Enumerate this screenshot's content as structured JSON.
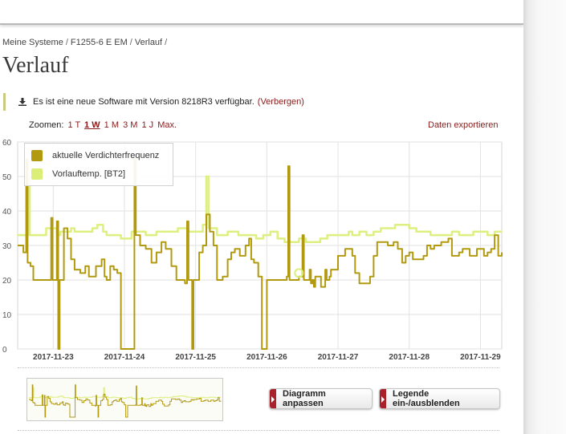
{
  "breadcrumb": {
    "items": [
      "Meine Systeme",
      "F1255-6 E EM",
      "Verlauf"
    ]
  },
  "page": {
    "title": "Verlauf"
  },
  "notice": {
    "text": "Es ist eine neue Software mit Version 8218R3 verfügbar.",
    "hide_link": "(Verbergen)"
  },
  "toolbar": {
    "zoom_label": "Zoomen:",
    "zoom_options": [
      "1 T",
      "1 W",
      "1 M",
      "3 M",
      "1 J",
      "Max."
    ],
    "zoom_active": "1 W",
    "export_label": "Daten exportieren"
  },
  "buttons": {
    "adjust": "Diagramm anpassen",
    "legend_toggle": "Legende ein-/ausblenden"
  },
  "icons": {
    "notice": "download-icon",
    "button_marker": "arrow-right-icon"
  },
  "colors": {
    "compressor": "#b29a10",
    "flow": "#dbee78",
    "link": "#8a1a1a",
    "button_tab": "#a9222b"
  },
  "chart_data": {
    "type": "line",
    "y_ticks": [
      0,
      10,
      20,
      30,
      40,
      50,
      60
    ],
    "ylim": [
      0,
      60
    ],
    "x_ticks": [
      "2017-11-23",
      "2017-11-24",
      "2017-11-25",
      "2017-11-26",
      "2017-11-27",
      "2017-11-28",
      "2017-11-29"
    ],
    "x_range_days": [
      -0.5,
      6.3
    ],
    "grid": true,
    "legend_position": "top-left",
    "series": [
      {
        "name": "aktuelle Verdichterfrequenz",
        "color": "#b29a10",
        "step": true,
        "points": [
          [
            -0.5,
            30
          ],
          [
            -0.42,
            28
          ],
          [
            -0.38,
            55
          ],
          [
            -0.36,
            25
          ],
          [
            -0.32,
            24
          ],
          [
            -0.28,
            20
          ],
          [
            -0.05,
            20
          ],
          [
            -0.03,
            38
          ],
          [
            -0.01,
            20
          ],
          [
            0.05,
            37
          ],
          [
            0.07,
            0
          ],
          [
            0.09,
            20
          ],
          [
            0.13,
            20
          ],
          [
            0.15,
            35
          ],
          [
            0.2,
            32
          ],
          [
            0.25,
            26
          ],
          [
            0.3,
            23
          ],
          [
            0.38,
            22
          ],
          [
            0.45,
            24
          ],
          [
            0.5,
            21
          ],
          [
            0.6,
            24
          ],
          [
            0.68,
            26
          ],
          [
            0.72,
            21
          ],
          [
            0.75,
            20
          ],
          [
            0.8,
            24
          ],
          [
            0.85,
            23
          ],
          [
            0.9,
            22
          ],
          [
            0.95,
            0
          ],
          [
            1.12,
            0
          ],
          [
            1.14,
            55
          ],
          [
            1.16,
            33
          ],
          [
            1.22,
            30
          ],
          [
            1.3,
            29
          ],
          [
            1.38,
            25
          ],
          [
            1.45,
            28
          ],
          [
            1.52,
            31
          ],
          [
            1.58,
            29
          ],
          [
            1.66,
            24
          ],
          [
            1.73,
            20
          ],
          [
            1.8,
            20
          ],
          [
            1.85,
            19
          ],
          [
            1.88,
            37
          ],
          [
            1.9,
            20
          ],
          [
            1.95,
            0
          ],
          [
            1.97,
            20
          ],
          [
            2.05,
            28
          ],
          [
            2.1,
            30
          ],
          [
            2.15,
            39
          ],
          [
            2.2,
            34
          ],
          [
            2.25,
            30
          ],
          [
            2.3,
            20
          ],
          [
            2.38,
            21
          ],
          [
            2.45,
            26
          ],
          [
            2.5,
            28
          ],
          [
            2.55,
            29
          ],
          [
            2.62,
            27
          ],
          [
            2.7,
            30
          ],
          [
            2.75,
            32
          ],
          [
            2.78,
            26
          ],
          [
            2.82,
            25
          ],
          [
            2.88,
            21
          ],
          [
            2.93,
            0
          ],
          [
            3.0,
            20
          ],
          [
            3.1,
            20
          ],
          [
            3.2,
            20
          ],
          [
            3.28,
            21
          ],
          [
            3.3,
            53
          ],
          [
            3.32,
            20
          ],
          [
            3.35,
            20
          ],
          [
            3.45,
            21
          ],
          [
            3.5,
            33
          ],
          [
            3.52,
            20
          ],
          [
            3.55,
            20
          ],
          [
            3.6,
            23
          ],
          [
            3.62,
            19
          ],
          [
            3.64,
            20
          ],
          [
            3.66,
            18
          ],
          [
            3.68,
            21
          ],
          [
            3.72,
            21
          ],
          [
            3.76,
            18
          ],
          [
            3.8,
            18
          ],
          [
            3.82,
            23
          ],
          [
            3.84,
            20
          ],
          [
            3.88,
            21
          ],
          [
            3.9,
            23
          ],
          [
            4.0,
            27
          ],
          [
            4.1,
            29
          ],
          [
            4.15,
            29
          ],
          [
            4.2,
            27
          ],
          [
            4.24,
            22
          ],
          [
            4.3,
            19
          ],
          [
            4.35,
            19
          ],
          [
            4.45,
            21
          ],
          [
            4.5,
            27
          ],
          [
            4.55,
            31
          ],
          [
            4.6,
            31
          ],
          [
            4.7,
            30
          ],
          [
            4.75,
            30
          ],
          [
            4.78,
            31
          ],
          [
            4.8,
            31
          ],
          [
            4.84,
            29
          ],
          [
            4.9,
            25
          ],
          [
            4.95,
            27
          ],
          [
            5.0,
            28
          ],
          [
            5.05,
            26
          ],
          [
            5.1,
            26
          ],
          [
            5.2,
            27
          ],
          [
            5.25,
            30
          ],
          [
            5.3,
            29
          ],
          [
            5.35,
            30
          ],
          [
            5.4,
            30
          ],
          [
            5.45,
            31
          ],
          [
            5.5,
            31
          ],
          [
            5.55,
            32
          ],
          [
            5.6,
            27
          ],
          [
            5.7,
            28
          ],
          [
            5.75,
            29
          ],
          [
            5.8,
            29
          ],
          [
            5.85,
            27
          ],
          [
            5.9,
            27
          ],
          [
            5.95,
            29
          ],
          [
            6.0,
            29
          ],
          [
            6.05,
            27
          ],
          [
            6.1,
            28
          ],
          [
            6.15,
            29
          ],
          [
            6.2,
            33
          ],
          [
            6.25,
            27
          ],
          [
            6.3,
            28
          ]
        ]
      },
      {
        "name": "Vorlauftemp. [BT2]",
        "color": "#dbee78",
        "step": true,
        "points": [
          [
            -0.5,
            33
          ],
          [
            -0.4,
            33
          ],
          [
            -0.35,
            50
          ],
          [
            -0.33,
            33
          ],
          [
            -0.2,
            33
          ],
          [
            -0.1,
            35
          ],
          [
            0.0,
            35
          ],
          [
            0.05,
            33
          ],
          [
            0.1,
            34
          ],
          [
            0.25,
            35
          ],
          [
            0.3,
            34
          ],
          [
            0.45,
            34
          ],
          [
            0.55,
            35
          ],
          [
            0.62,
            36
          ],
          [
            0.7,
            34
          ],
          [
            0.75,
            33
          ],
          [
            0.85,
            33
          ],
          [
            0.95,
            32
          ],
          [
            1.1,
            34
          ],
          [
            1.15,
            34
          ],
          [
            1.3,
            33
          ],
          [
            1.45,
            34
          ],
          [
            1.6,
            34
          ],
          [
            1.75,
            35
          ],
          [
            1.8,
            35
          ],
          [
            1.9,
            34
          ],
          [
            2.0,
            34
          ],
          [
            2.1,
            36
          ],
          [
            2.15,
            50
          ],
          [
            2.18,
            35
          ],
          [
            2.3,
            33
          ],
          [
            2.45,
            34
          ],
          [
            2.6,
            33
          ],
          [
            2.7,
            33
          ],
          [
            2.85,
            32
          ],
          [
            2.95,
            33
          ],
          [
            3.05,
            34
          ],
          [
            3.15,
            32
          ],
          [
            3.25,
            31
          ],
          [
            3.35,
            31
          ],
          [
            3.45,
            32
          ],
          [
            3.55,
            31
          ],
          [
            3.65,
            31
          ],
          [
            3.75,
            32
          ],
          [
            3.85,
            33
          ],
          [
            3.95,
            33
          ],
          [
            4.05,
            33
          ],
          [
            4.15,
            34
          ],
          [
            4.2,
            33
          ],
          [
            4.3,
            34
          ],
          [
            4.4,
            33
          ],
          [
            4.5,
            34
          ],
          [
            4.6,
            35
          ],
          [
            4.7,
            35
          ],
          [
            4.8,
            36
          ],
          [
            4.9,
            36
          ],
          [
            5.0,
            35
          ],
          [
            5.1,
            34
          ],
          [
            5.2,
            34
          ],
          [
            5.3,
            33
          ],
          [
            5.4,
            33
          ],
          [
            5.5,
            33
          ],
          [
            5.6,
            34
          ],
          [
            5.7,
            33
          ],
          [
            5.8,
            33
          ],
          [
            5.9,
            34
          ],
          [
            6.0,
            34
          ],
          [
            6.05,
            34
          ],
          [
            6.1,
            33
          ],
          [
            6.15,
            33
          ],
          [
            6.2,
            34
          ],
          [
            6.25,
            34
          ],
          [
            6.3,
            34
          ]
        ]
      }
    ]
  }
}
